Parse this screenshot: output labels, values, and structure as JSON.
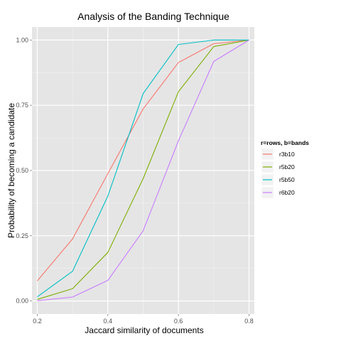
{
  "chart_data": {
    "type": "line",
    "title": "Analysis of the Banding Technique",
    "xlabel": "Jaccard similarity of documents",
    "ylabel": "Probability of becoming a candidate",
    "xlim": [
      0.185,
      0.815
    ],
    "ylim": [
      -0.05,
      1.05
    ],
    "x_ticks": [
      0.2,
      0.4,
      0.6,
      0.8
    ],
    "x_tick_labels": [
      "0.2",
      "0.4",
      "0.6",
      "0.8"
    ],
    "y_ticks": [
      0.0,
      0.25,
      0.5,
      0.75,
      1.0
    ],
    "y_tick_labels": [
      "0.00",
      "0.25",
      "0.50",
      "0.75",
      "1.00"
    ],
    "grid": true,
    "background": "#e5e5e5",
    "legend": {
      "title": "r=rows, b=bands",
      "position": "right"
    },
    "x": [
      0.2,
      0.3,
      0.4,
      0.5,
      0.6,
      0.7,
      0.8
    ],
    "series": [
      {
        "name": "r3b10",
        "color": "#f8766d",
        "values": [
          0.077,
          0.238,
          0.488,
          0.736,
          0.914,
          0.986,
          1.0
        ]
      },
      {
        "name": "r5b20",
        "color": "#7cae00",
        "values": [
          0.006,
          0.047,
          0.186,
          0.469,
          0.802,
          0.975,
          1.0
        ]
      },
      {
        "name": "r5b50",
        "color": "#00bfc4",
        "values": [
          0.016,
          0.114,
          0.402,
          0.795,
          0.983,
          1.0,
          1.0
        ]
      },
      {
        "name": "r6b20",
        "color": "#c77cff",
        "values": [
          0.001,
          0.015,
          0.079,
          0.269,
          0.614,
          0.918,
          1.0
        ]
      }
    ]
  }
}
